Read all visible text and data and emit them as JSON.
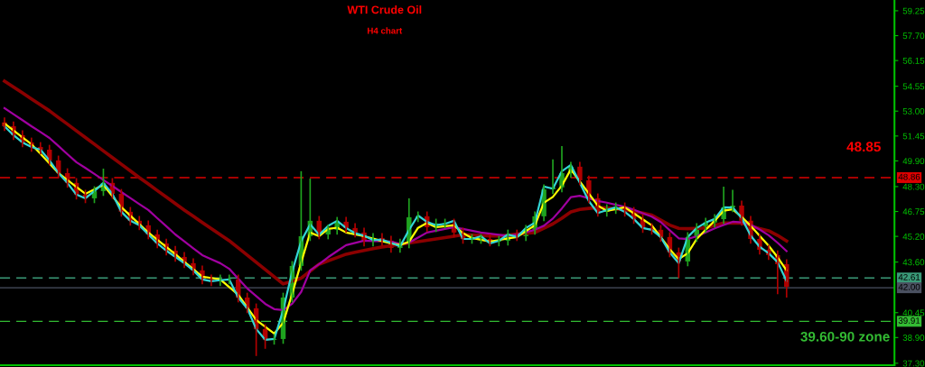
{
  "chart_data": {
    "type": "candlestick",
    "title": "WTI Crude Oil",
    "subtitle": "H4 chart",
    "categories": [
      null,
      null,
      null,
      null,
      null,
      null,
      null,
      null,
      null,
      null,
      null,
      null,
      null,
      null,
      null,
      null,
      null,
      null,
      null,
      null,
      null,
      null,
      null,
      null,
      null,
      null,
      null,
      null,
      null,
      null,
      null,
      null,
      null,
      null,
      null,
      null,
      null,
      null,
      null,
      null,
      null,
      null,
      null,
      null,
      null,
      null,
      null,
      null,
      null,
      null,
      null,
      null,
      null,
      null,
      null,
      null,
      null,
      null,
      null,
      null,
      null,
      null,
      null,
      null,
      null,
      null,
      null,
      null,
      null,
      null,
      null,
      null,
      null,
      null,
      null,
      null,
      null,
      null,
      null,
      null,
      null,
      null,
      null,
      null,
      null,
      null,
      null,
      null
    ],
    "ohlc": [
      [
        52.3,
        52.6,
        51.76,
        52.06
      ],
      [
        52.06,
        52.36,
        51.2,
        51.5
      ],
      [
        51.5,
        51.8,
        50.75,
        51.05
      ],
      [
        51.05,
        51.35,
        50.47,
        50.77
      ],
      [
        50.77,
        51.07,
        50.3,
        50.6
      ],
      [
        50.6,
        50.9,
        49.63,
        49.93
      ],
      [
        49.93,
        50.23,
        48.84,
        49.14
      ],
      [
        49.14,
        49.44,
        48.23,
        48.53
      ],
      [
        48.53,
        48.83,
        47.5,
        47.8
      ],
      [
        47.8,
        48.1,
        47.27,
        47.57
      ],
      [
        47.57,
        48.32,
        47.27,
        48.02
      ],
      [
        48.02,
        49.42,
        47.72,
        48.53
      ],
      [
        48.53,
        48.83,
        47.55,
        47.85
      ],
      [
        47.85,
        48.15,
        46.43,
        46.73
      ],
      [
        46.73,
        47.03,
        45.87,
        46.17
      ],
      [
        46.17,
        46.47,
        45.59,
        45.89
      ],
      [
        45.89,
        46.19,
        45.02,
        45.32
      ],
      [
        45.32,
        45.62,
        44.46,
        44.76
      ],
      [
        44.76,
        45.06,
        44.01,
        44.31
      ],
      [
        44.31,
        44.61,
        43.62,
        43.92
      ],
      [
        43.92,
        44.22,
        43.23,
        43.53
      ],
      [
        43.53,
        43.83,
        42.78,
        43.08
      ],
      [
        43.08,
        43.38,
        42.22,
        42.52
      ],
      [
        42.52,
        42.82,
        42.11,
        42.41
      ],
      [
        42.41,
        42.82,
        42.11,
        42.52
      ],
      [
        42.52,
        42.82,
        42.22,
        42.52
      ],
      [
        42.52,
        42.82,
        41.09,
        41.39
      ],
      [
        41.39,
        41.69,
        40.42,
        40.72
      ],
      [
        40.72,
        41.02,
        37.75,
        39.43
      ],
      [
        39.43,
        39.73,
        38.2,
        38.76
      ],
      [
        38.76,
        39.11,
        38.46,
        38.81
      ],
      [
        38.81,
        41.69,
        38.51,
        41.39
      ],
      [
        41.39,
        43.66,
        41.09,
        43.36
      ],
      [
        43.36,
        49.26,
        43.06,
        45.21
      ],
      [
        45.21,
        48.8,
        44.91,
        46.17
      ],
      [
        46.17,
        46.47,
        45.02,
        45.32
      ],
      [
        45.32,
        45.91,
        45.02,
        45.61
      ],
      [
        45.61,
        46.41,
        45.31,
        46.11
      ],
      [
        46.11,
        46.41,
        45.42,
        45.72
      ],
      [
        45.72,
        46.02,
        45.14,
        45.44
      ],
      [
        45.44,
        45.74,
        44.58,
        44.88
      ],
      [
        44.88,
        45.4,
        44.58,
        45.1
      ],
      [
        45.1,
        45.4,
        44.63,
        44.93
      ],
      [
        44.93,
        45.23,
        44.18,
        44.48
      ],
      [
        44.48,
        45.06,
        44.18,
        44.76
      ],
      [
        44.76,
        47.57,
        44.46,
        46.39
      ],
      [
        46.39,
        46.75,
        46.09,
        46.45
      ],
      [
        46.45,
        46.75,
        45.47,
        45.77
      ],
      [
        45.77,
        46.3,
        45.47,
        46.0
      ],
      [
        46.0,
        46.3,
        45.7,
        46.0
      ],
      [
        46.0,
        46.3,
        45.14,
        45.44
      ],
      [
        45.44,
        45.74,
        44.74,
        45.04
      ],
      [
        45.04,
        45.34,
        44.74,
        45.04
      ],
      [
        45.04,
        45.34,
        44.74,
        45.04
      ],
      [
        45.04,
        45.34,
        44.58,
        44.88
      ],
      [
        44.88,
        45.23,
        44.58,
        44.93
      ],
      [
        44.93,
        45.62,
        44.63,
        45.32
      ],
      [
        45.32,
        45.62,
        44.91,
        45.21
      ],
      [
        45.21,
        45.91,
        44.91,
        45.61
      ],
      [
        45.61,
        46.75,
        45.31,
        46.45
      ],
      [
        46.45,
        48.43,
        46.15,
        48.13
      ],
      [
        48.13,
        50.0,
        47.83,
        48.25
      ],
      [
        48.25,
        50.83,
        47.95,
        49.14
      ],
      [
        49.14,
        49.84,
        48.84,
        49.54
      ],
      [
        49.54,
        49.84,
        48.39,
        48.69
      ],
      [
        48.69,
        48.99,
        47.27,
        47.57
      ],
      [
        47.57,
        47.87,
        46.43,
        46.73
      ],
      [
        46.73,
        47.2,
        46.43,
        46.9
      ],
      [
        46.9,
        47.31,
        46.6,
        47.01
      ],
      [
        47.01,
        47.31,
        46.43,
        46.73
      ],
      [
        46.73,
        47.03,
        45.98,
        46.28
      ],
      [
        46.28,
        46.58,
        45.42,
        45.72
      ],
      [
        45.72,
        46.02,
        45.31,
        45.61
      ],
      [
        45.61,
        45.91,
        44.86,
        45.16
      ],
      [
        45.16,
        45.46,
        43.9,
        44.2
      ],
      [
        44.2,
        44.5,
        42.6,
        43.64
      ],
      [
        43.64,
        45.46,
        43.34,
        45.16
      ],
      [
        45.16,
        46.02,
        44.86,
        45.72
      ],
      [
        45.72,
        46.36,
        45.42,
        46.06
      ],
      [
        46.06,
        46.58,
        45.76,
        46.28
      ],
      [
        46.28,
        48.3,
        45.98,
        47.01
      ],
      [
        47.01,
        48.1,
        46.71,
        47.12
      ],
      [
        47.12,
        47.42,
        45.87,
        46.17
      ],
      [
        46.17,
        46.47,
        44.74,
        45.04
      ],
      [
        45.04,
        45.34,
        44.07,
        44.37
      ],
      [
        44.37,
        44.67,
        43.73,
        44.03
      ],
      [
        44.03,
        44.33,
        41.6,
        43.47
      ],
      [
        43.47,
        43.77,
        41.39,
        42.07
      ]
    ],
    "colors": [
      "#b00000",
      "#b00000",
      "#b00000",
      "#b00000",
      "#b00000",
      "#b00000",
      "#b00000",
      "#b00000",
      "#b00000",
      "#b00000",
      "#1fa31f",
      "#1fa31f",
      "#b00000",
      "#b00000",
      "#b00000",
      "#b00000",
      "#b00000",
      "#b00000",
      "#b00000",
      "#b00000",
      "#b00000",
      "#b00000",
      "#b00000",
      "#b00000",
      "#1fa31f",
      "#1fa31f",
      "#b00000",
      "#b00000",
      "#b00000",
      "#b00000",
      "#1fa31f",
      "#1fa31f",
      "#1fa31f",
      "#1fa31f",
      "#1fa31f",
      "#b00000",
      "#1fa31f",
      "#1fa31f",
      "#b00000",
      "#b00000",
      "#b00000",
      "#1fa31f",
      "#b00000",
      "#b00000",
      "#1fa31f",
      "#1fa31f",
      "#1fa31f",
      "#b00000",
      "#1fa31f",
      "#1fa31f",
      "#b00000",
      "#b00000",
      "#1fa31f",
      "#1fa31f",
      "#b00000",
      "#1fa31f",
      "#1fa31f",
      "#b00000",
      "#1fa31f",
      "#1fa31f",
      "#1fa31f",
      "#1fa31f",
      "#1fa31f",
      "#1fa31f",
      "#b00000",
      "#b00000",
      "#b00000",
      "#1fa31f",
      "#1fa31f",
      "#b00000",
      "#b00000",
      "#b00000",
      "#b00000",
      "#b00000",
      "#b00000",
      "#b00000",
      "#1fa31f",
      "#1fa31f",
      "#1fa31f",
      "#1fa31f",
      "#1fa31f",
      "#1fa31f",
      "#b00000",
      "#b00000",
      "#b00000",
      "#b00000",
      "#b00000",
      "#b00000"
    ],
    "series": [
      {
        "type": "line",
        "color": "#8b0000",
        "values": [
          54.87,
          54.5,
          54.13,
          53.76,
          53.39,
          53.02,
          52.6,
          52.19,
          51.77,
          51.36,
          50.94,
          50.52,
          50.11,
          49.69,
          49.28,
          48.86,
          48.46,
          48.05,
          47.65,
          47.24,
          46.84,
          46.46,
          46.07,
          45.69,
          45.31,
          44.93,
          44.48,
          44.04,
          43.59,
          43.14,
          42.69,
          42.24,
          42.4,
          42.6,
          43.03,
          43.47,
          43.68,
          43.88,
          44.09,
          44.21,
          44.32,
          44.44,
          44.54,
          44.62,
          44.7,
          44.79,
          44.87,
          44.96,
          45.04,
          45.12,
          45.21,
          45.3,
          45.29,
          45.26,
          45.23,
          45.23,
          45.28,
          45.34,
          45.39,
          45.44,
          45.71,
          45.98,
          46.33,
          46.72,
          46.88,
          46.94,
          47.0,
          46.97,
          46.91,
          46.86,
          46.76,
          46.65,
          46.53,
          46.21,
          45.9,
          45.7,
          45.68,
          45.7,
          45.72,
          45.88,
          46.03,
          46.04,
          46.02,
          45.85,
          45.68,
          45.55,
          45.26,
          44.91
        ]
      },
      {
        "type": "line",
        "color": "#a000a0",
        "values": [
          53.19,
          52.81,
          52.44,
          52.06,
          51.7,
          51.33,
          50.83,
          50.32,
          49.82,
          49.46,
          49.09,
          48.71,
          48.34,
          47.96,
          47.59,
          47.21,
          46.84,
          46.33,
          45.83,
          45.32,
          44.89,
          44.46,
          44.03,
          43.78,
          43.53,
          43.18,
          42.57,
          41.96,
          41.48,
          41.0,
          40.67,
          40.61,
          41.0,
          41.74,
          43.08,
          43.47,
          43.9,
          44.28,
          44.65,
          44.79,
          44.93,
          44.91,
          44.9,
          44.88,
          44.73,
          44.81,
          45.12,
          45.44,
          45.55,
          45.66,
          45.77,
          45.66,
          45.55,
          45.44,
          45.37,
          45.3,
          45.23,
          45.31,
          45.46,
          45.61,
          45.86,
          46.31,
          46.94,
          47.64,
          47.73,
          47.57,
          47.4,
          47.3,
          47.17,
          47.04,
          46.86,
          46.64,
          46.43,
          46.09,
          45.58,
          45.08,
          45.03,
          45.21,
          45.45,
          45.7,
          45.91,
          46.11,
          46.07,
          45.93,
          45.63,
          45.27,
          44.8,
          44.28
        ]
      },
      {
        "type": "line",
        "color": "#ffff00",
        "values": [
          52.23,
          51.8,
          51.37,
          50.94,
          50.34,
          49.74,
          49.14,
          48.71,
          48.28,
          47.85,
          48.13,
          48.41,
          47.71,
          47.01,
          46.49,
          45.96,
          45.44,
          44.99,
          44.54,
          44.09,
          43.62,
          43.16,
          42.69,
          42.61,
          42.52,
          42.04,
          41.56,
          40.78,
          39.99,
          39.57,
          39.15,
          39.82,
          41.62,
          43.57,
          45.44,
          45.21,
          45.66,
          45.74,
          45.44,
          45.33,
          45.21,
          45.06,
          44.91,
          44.76,
          44.67,
          44.86,
          45.73,
          46.04,
          45.77,
          45.83,
          45.89,
          45.4,
          45.1,
          44.99,
          44.88,
          44.97,
          45.07,
          45.16,
          45.53,
          45.89,
          47.29,
          47.66,
          48.36,
          49.37,
          48.62,
          47.87,
          47.11,
          46.79,
          46.9,
          47.01,
          46.64,
          46.26,
          45.89,
          45.15,
          44.4,
          43.78,
          44.15,
          45.04,
          45.61,
          46.17,
          46.8,
          46.88,
          46.41,
          45.86,
          45.24,
          44.62,
          43.9,
          43.08
        ]
      },
      {
        "type": "line",
        "color": "#33d6d6",
        "values": [
          52.06,
          51.5,
          51.05,
          50.77,
          50.6,
          49.93,
          49.14,
          48.53,
          47.8,
          47.57,
          48.02,
          48.53,
          47.85,
          46.73,
          46.17,
          45.89,
          45.32,
          44.76,
          44.31,
          43.92,
          43.53,
          43.08,
          42.52,
          42.41,
          42.47,
          42.52,
          41.39,
          40.72,
          39.43,
          38.76,
          38.81,
          40.6,
          43.0,
          44.9,
          45.95,
          45.3,
          45.85,
          46.17,
          45.72,
          45.4,
          45.25,
          44.97,
          45.0,
          44.8,
          44.58,
          45.6,
          46.5,
          46.1,
          45.9,
          45.98,
          46.17,
          45.04,
          45.04,
          45.21,
          44.76,
          44.93,
          45.32,
          45.16,
          45.72,
          46.06,
          48.3,
          48.17,
          49.26,
          49.65,
          48.53,
          47.4,
          46.65,
          46.84,
          47.01,
          46.73,
          46.28,
          45.72,
          45.61,
          45.16,
          44.2,
          43.53,
          45.16,
          45.72,
          46.06,
          46.28,
          47.01,
          47.0,
          46.35,
          45.25,
          44.55,
          44.15,
          43.6,
          42.41
        ]
      }
    ],
    "ylim": [
      37.18,
      59.92
    ],
    "yticks": [
      59.25,
      {
        "value": 57.7,
        "label": "57.70"
      },
      56.15,
      54.55,
      {
        "value": 53,
        "label": "53.00"
      },
      51.45,
      {
        "value": 49.9,
        "label": "49.90"
      },
      {
        "value": 48.3,
        "label": "48.30"
      },
      46.75,
      {
        "value": 45.2,
        "label": "45.20"
      },
      {
        "value": 43.6,
        "label": "43.60"
      },
      40.45,
      {
        "value": 38.9,
        "label": "38.90"
      },
      {
        "value": 37.3,
        "label": "37.30"
      }
    ],
    "tick_labels": "y",
    "grid": false,
    "legend": false,
    "ref_lines": [
      {
        "axis": "y",
        "value": 48.86,
        "label": "48.86",
        "color": "#dd0000",
        "line_style": "dashed"
      },
      {
        "axis": "y",
        "value": 42.61,
        "label": "42.61",
        "color": "#3a9a78",
        "line_style": "dashed"
      },
      {
        "axis": "y",
        "value": 42.0,
        "label": "42.00",
        "color": "#4a5060",
        "line_style": "solid"
      },
      {
        "axis": "y",
        "value": 39.91,
        "label": "39.91",
        "color": "#33bb33",
        "line_style": "dashed"
      }
    ],
    "annotations": [
      "48.85",
      "39.60-90 zone"
    ]
  }
}
